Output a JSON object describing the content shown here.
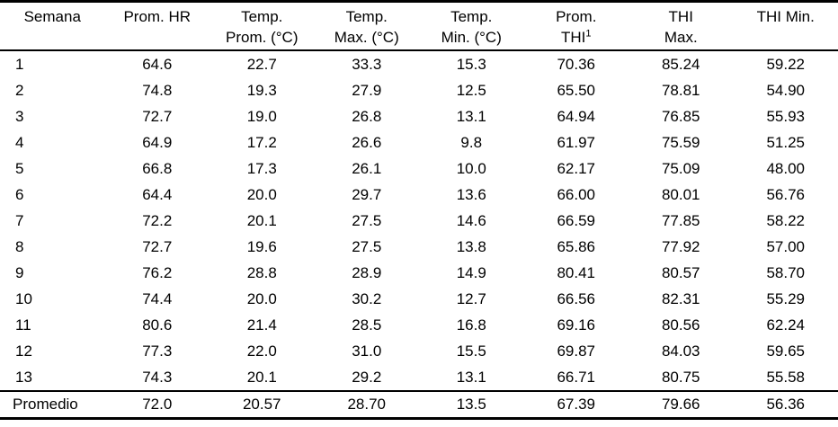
{
  "chart_data": {
    "type": "table",
    "title": "",
    "columns": [
      "Semana",
      "Prom. HR",
      "Temp. Prom. (°C)",
      "Temp. Max. (°C)",
      "Temp. Min. (°C)",
      "Prom. THI¹",
      "THI Max.",
      "THI Min."
    ],
    "rows": [
      [
        "1",
        "64.6",
        "22.7",
        "33.3",
        "15.3",
        "70.36",
        "85.24",
        "59.22"
      ],
      [
        "2",
        "74.8",
        "19.3",
        "27.9",
        "12.5",
        "65.50",
        "78.81",
        "54.90"
      ],
      [
        "3",
        "72.7",
        "19.0",
        "26.8",
        "13.1",
        "64.94",
        "76.85",
        "55.93"
      ],
      [
        "4",
        "64.9",
        "17.2",
        "26.6",
        "9.8",
        "61.97",
        "75.59",
        "51.25"
      ],
      [
        "5",
        "66.8",
        "17.3",
        "26.1",
        "10.0",
        "62.17",
        "75.09",
        "48.00"
      ],
      [
        "6",
        "64.4",
        "20.0",
        "29.7",
        "13.6",
        "66.00",
        "80.01",
        "56.76"
      ],
      [
        "7",
        "72.2",
        "20.1",
        "27.5",
        "14.6",
        "66.59",
        "77.85",
        "58.22"
      ],
      [
        "8",
        "72.7",
        "19.6",
        "27.5",
        "13.8",
        "65.86",
        "77.92",
        "57.00"
      ],
      [
        "9",
        "76.2",
        "28.8",
        "28.9",
        "14.9",
        "80.41",
        "80.57",
        "58.70"
      ],
      [
        "10",
        "74.4",
        "20.0",
        "30.2",
        "12.7",
        "66.56",
        "82.31",
        "55.29"
      ],
      [
        "11",
        "80.6",
        "21.4",
        "28.5",
        "16.8",
        "69.16",
        "80.56",
        "62.24"
      ],
      [
        "12",
        "77.3",
        "22.0",
        "31.0",
        "15.5",
        "69.87",
        "84.03",
        "59.65"
      ],
      [
        "13",
        "74.3",
        "20.1",
        "29.2",
        "13.1",
        "66.71",
        "80.75",
        "55.58"
      ]
    ],
    "summary_row": [
      "Promedio",
      "72.0",
      "20.57",
      "28.70",
      "13.5",
      "67.39",
      "79.66",
      "56.36"
    ]
  },
  "header_display": [
    {
      "line1": "Semana",
      "line2": ""
    },
    {
      "line1": "Prom. HR",
      "line2": ""
    },
    {
      "line1": "Temp.",
      "line2": "Prom. (°C)"
    },
    {
      "line1": "Temp.",
      "line2": "Max. (°C)"
    },
    {
      "line1": "Temp.",
      "line2": "Min. (°C)"
    },
    {
      "line1": "Prom.",
      "line2": "THI",
      "sup": "1"
    },
    {
      "line1": "THI",
      "line2": "Max."
    },
    {
      "line1": "THI Min.",
      "line2": ""
    }
  ],
  "colors": {
    "text": "#000000",
    "background": "#ffffff",
    "border": "#000000"
  }
}
